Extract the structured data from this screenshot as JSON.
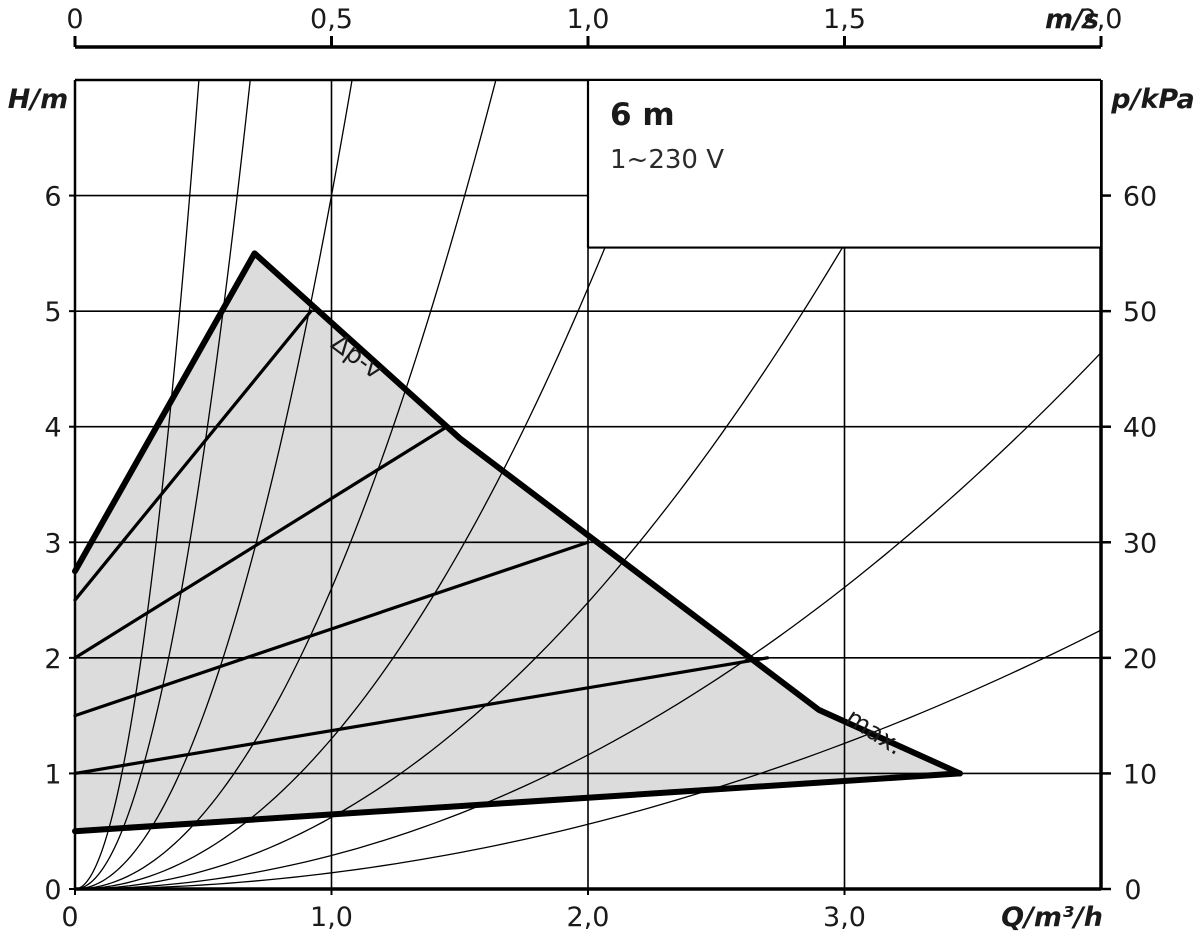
{
  "chart_data": {
    "type": "line",
    "title": "6 m",
    "subtitle": "1~230 V",
    "x": {
      "label_prefix": "Q",
      "label_unit": "m³/h",
      "range": [
        0,
        4.0
      ],
      "ticks": [
        0,
        1,
        2,
        3
      ],
      "tick_labels": [
        "0",
        "1,0",
        "2,0",
        "3,0"
      ]
    },
    "y_left": {
      "label_prefix": "H",
      "label_unit": "m",
      "range": [
        0,
        7.0
      ],
      "ticks": [
        0,
        1,
        2,
        3,
        4,
        5,
        6
      ],
      "tick_labels": [
        "0",
        "1",
        "2",
        "3",
        "4",
        "5",
        "6"
      ]
    },
    "y_right": {
      "label_prefix": "p",
      "label_unit": "kPa",
      "ticks": [
        0,
        10,
        20,
        30,
        40,
        50,
        60
      ],
      "tick_labels": [
        "0",
        "10",
        "20",
        "30",
        "40",
        "50",
        "60"
      ]
    },
    "x_top": {
      "label_unit": "m/s",
      "ticks": [
        0,
        0.5,
        1.0,
        1.5,
        2.0
      ],
      "tick_labels": [
        "0",
        "0,5",
        "1,0",
        "1,5",
        "2,0"
      ],
      "q_per_velocity": 2.0
    },
    "grid": true,
    "operating_area": [
      [
        0,
        2.75
      ],
      [
        0.7,
        5.5
      ],
      [
        1.5,
        3.9
      ],
      [
        2.9,
        1.55
      ],
      [
        3.45,
        1.0
      ],
      [
        0,
        0.5
      ]
    ],
    "control_lines": [
      {
        "points": [
          [
            0,
            0.5
          ],
          [
            3.45,
            1.0
          ]
        ]
      },
      {
        "points": [
          [
            0,
            1.0
          ],
          [
            2.7,
            2.0
          ]
        ]
      },
      {
        "points": [
          [
            0,
            1.5
          ],
          [
            2.0,
            3.0
          ]
        ]
      },
      {
        "points": [
          [
            0,
            2.0
          ],
          [
            1.45,
            4.0
          ]
        ]
      },
      {
        "points": [
          [
            0,
            2.5
          ],
          [
            0.92,
            5.0
          ]
        ]
      }
    ],
    "system_curves_k": [
      30,
      15,
      6,
      2.6,
      1.3,
      0.62,
      0.29,
      0.14
    ],
    "annotations": [
      {
        "text": "Δp-v",
        "at": [
          1.08,
          4.55
        ],
        "angle": 37
      },
      {
        "text": "max.",
        "at": [
          3.1,
          1.3
        ],
        "angle": 33
      }
    ],
    "colors": {
      "area_fill": "#dcdcdc",
      "line": "#000000",
      "grid": "#000000",
      "text": "#1a1a1a"
    }
  }
}
